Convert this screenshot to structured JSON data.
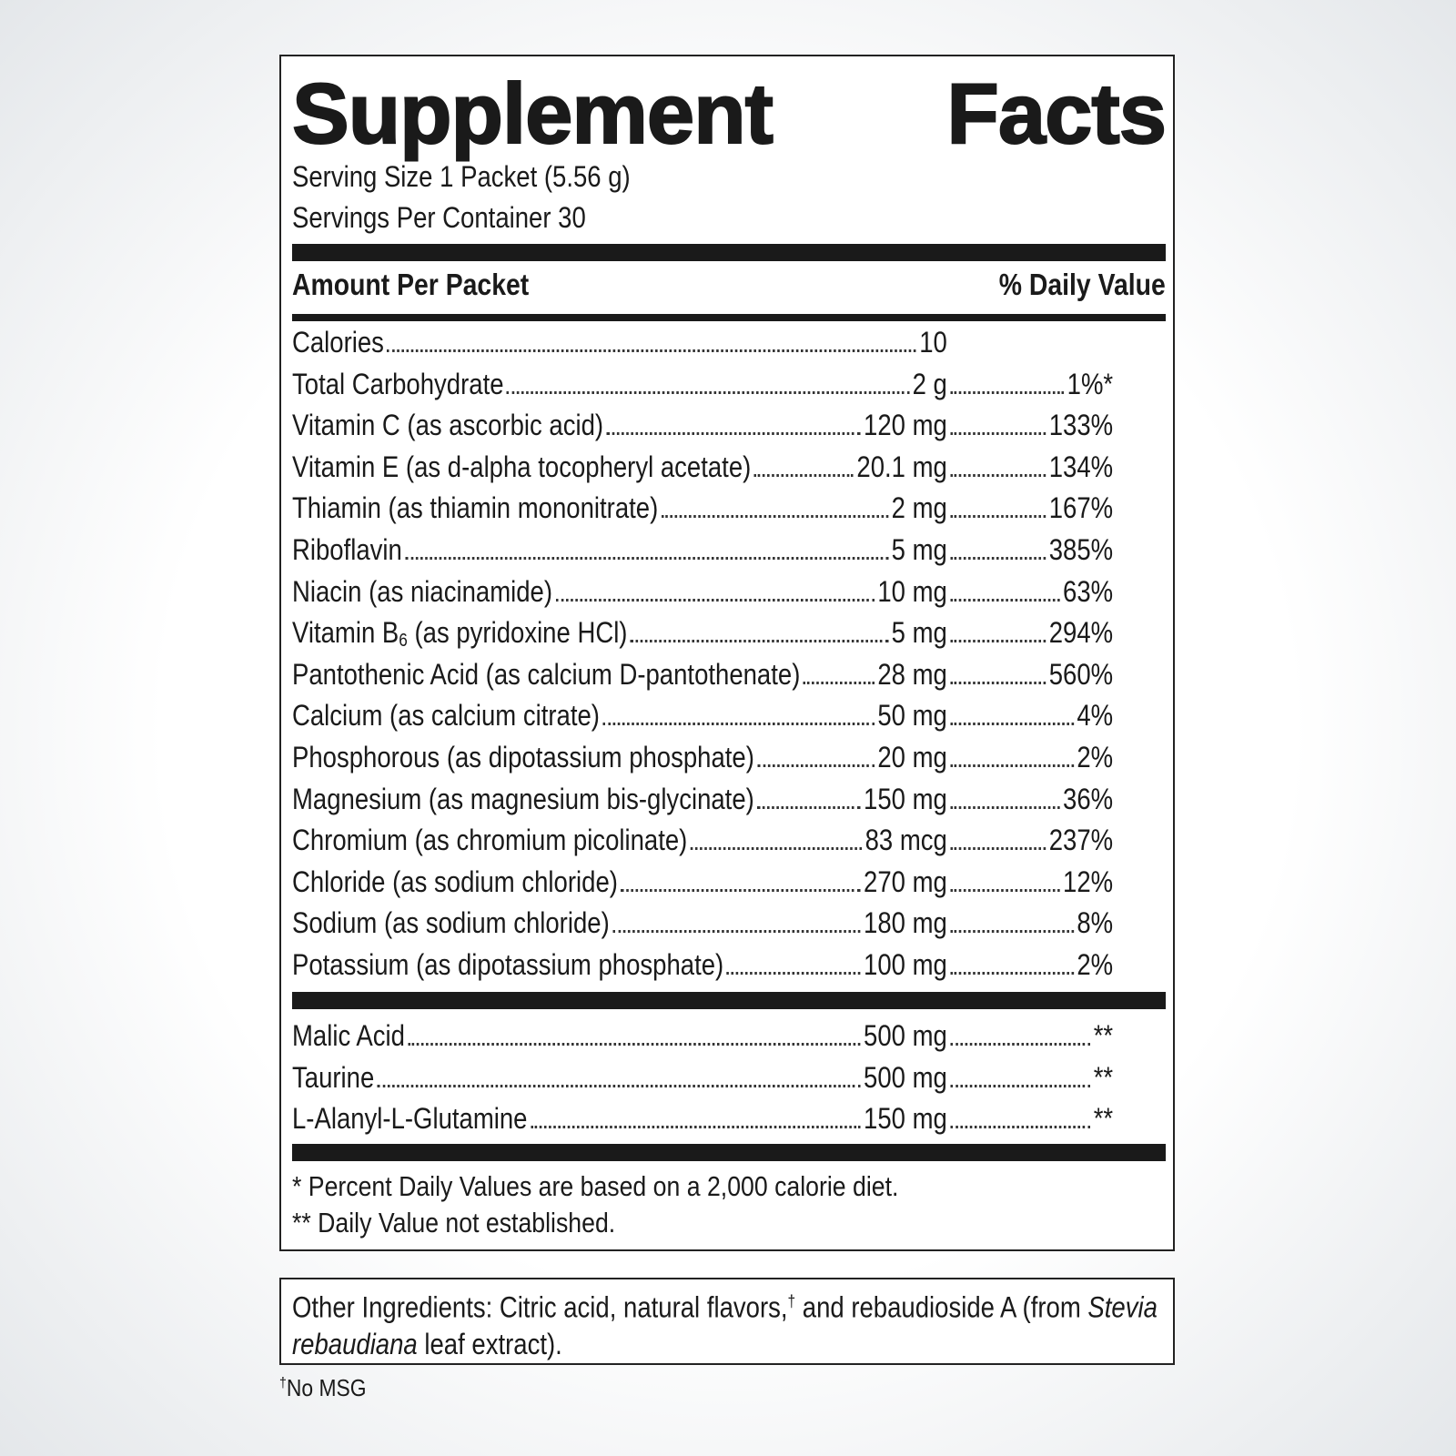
{
  "header": {
    "title": "Supplement Facts",
    "serving_size": "Serving Size 1 Packet (5.56 g)",
    "servings_per_container": "Servings Per Container 30"
  },
  "table": {
    "amount_heading": "Amount Per Packet",
    "daily_value_heading": "% Daily Value",
    "nutrients": [
      {
        "name": "Calories",
        "amount": "10"
      },
      {
        "name": "Total Carbohydrate",
        "amount": "2 g",
        "daily_value": "1%*"
      },
      {
        "name": "Vitamin C (as ascorbic acid)",
        "amount": "120 mg",
        "daily_value": "133%"
      },
      {
        "name": "Vitamin E (as d-alpha tocopheryl acetate)",
        "amount": "20.1 mg",
        "daily_value": "134%"
      },
      {
        "name": "Thiamin (as thiamin mononitrate)",
        "amount": "2 mg",
        "daily_value": "167%"
      },
      {
        "name": "Riboflavin",
        "amount": "5 mg",
        "daily_value": "385%"
      },
      {
        "name": "Niacin (as niacinamide)",
        "amount": "10 mg",
        "daily_value": "63%"
      },
      {
        "name": "Vitamin B",
        "subscript": "6",
        "name_suffix": " (as pyridoxine HCl)",
        "amount": "5 mg",
        "daily_value": "294%"
      },
      {
        "name": "Pantothenic Acid (as calcium D-pantothenate)",
        "amount": "28 mg",
        "daily_value": "560%"
      },
      {
        "name": "Calcium (as calcium citrate)",
        "amount": "50 mg",
        "daily_value": "4%"
      },
      {
        "name": "Phosphorous (as dipotassium phosphate)",
        "amount": "20 mg",
        "daily_value": "2%"
      },
      {
        "name": "Magnesium (as magnesium bis-glycinate)",
        "amount": "150 mg",
        "daily_value": "36%"
      },
      {
        "name": "Chromium (as chromium picolinate)",
        "amount": "83 mcg",
        "daily_value": "237%"
      },
      {
        "name": "Chloride (as sodium chloride)",
        "amount": "270 mg",
        "daily_value": "12%"
      },
      {
        "name": "Sodium (as sodium chloride)",
        "amount": "180 mg",
        "daily_value": "8%"
      },
      {
        "name": "Potassium (as dipotassium phosphate)",
        "amount": "100 mg",
        "daily_value": "2%"
      }
    ],
    "other_actives": [
      {
        "name": "Malic Acid",
        "amount": "500 mg",
        "daily_value": "**"
      },
      {
        "name": "Taurine",
        "amount": "500 mg",
        "daily_value": "**"
      },
      {
        "name": "L-Alanyl-L-Glutamine",
        "amount": "150 mg",
        "daily_value": "**"
      }
    ]
  },
  "footnotes": [
    "* Percent Daily Values are based on a 2,000 calorie diet.",
    "** Daily Value not established."
  ],
  "other_ingredients": {
    "parts": [
      {
        "text": "Other Ingredients: Citric acid, natural flavors,",
        "style": "normal"
      },
      {
        "text": "†",
        "style": "superscript"
      },
      {
        "text": " and rebaudioside A (from ",
        "style": "normal"
      },
      {
        "text": "Stevia rebaudiana",
        "style": "italic"
      },
      {
        "text": " leaf extract).",
        "style": "normal"
      }
    ]
  },
  "bottom_note": {
    "marker": "†",
    "text": "No MSG"
  }
}
